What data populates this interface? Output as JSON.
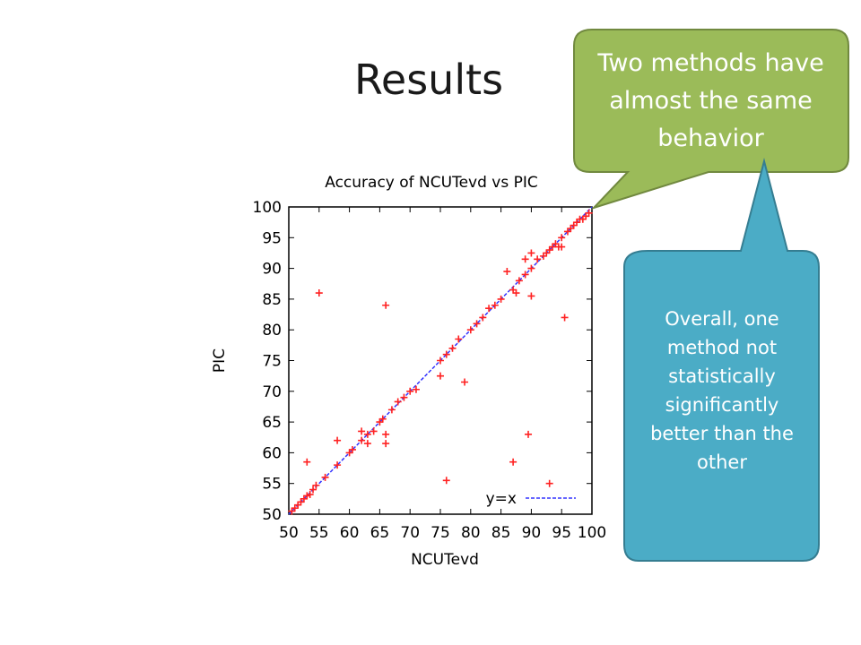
{
  "slide": {
    "title": "Results"
  },
  "callouts": {
    "green_text": "Two methods have almost the same behavior",
    "blue_text": "Overall, one method not statistically significantly better than the other",
    "green_color": "#9bbb59",
    "blue_color": "#4bacc6"
  },
  "chart_data": {
    "type": "scatter",
    "title": "Accuracy of NCUTevd vs PIC",
    "xlabel": "NCUTevd",
    "ylabel": "PIC",
    "xlim": [
      50,
      100
    ],
    "ylim": [
      50,
      100
    ],
    "xticks": [
      50,
      55,
      60,
      65,
      70,
      75,
      80,
      85,
      90,
      95,
      100
    ],
    "yticks": [
      50,
      55,
      60,
      65,
      70,
      75,
      80,
      85,
      90,
      95,
      100
    ],
    "grid": false,
    "legend": "bottom-right",
    "reference_line": {
      "label": "y=x",
      "color": "#3333ff"
    },
    "marker_color": "#ff2222",
    "points": [
      [
        50.5,
        50.5
      ],
      [
        51,
        51
      ],
      [
        51.5,
        51.5
      ],
      [
        52,
        52
      ],
      [
        52.5,
        52.5
      ],
      [
        53,
        53
      ],
      [
        53.5,
        53.2
      ],
      [
        54,
        54
      ],
      [
        54.5,
        54.7
      ],
      [
        53,
        58.5
      ],
      [
        55,
        86
      ],
      [
        56,
        56
      ],
      [
        58,
        58
      ],
      [
        58,
        62
      ],
      [
        60,
        60
      ],
      [
        60.5,
        60.5
      ],
      [
        62,
        62
      ],
      [
        62,
        63.5
      ],
      [
        63,
        61.5
      ],
      [
        63,
        63
      ],
      [
        64,
        63.5
      ],
      [
        65,
        65
      ],
      [
        65.5,
        65.5
      ],
      [
        66,
        84
      ],
      [
        66,
        63
      ],
      [
        66,
        61.5
      ],
      [
        67,
        67
      ],
      [
        68,
        68.3
      ],
      [
        69,
        69
      ],
      [
        70,
        70
      ],
      [
        71,
        70.3
      ],
      [
        75,
        72.5
      ],
      [
        75,
        75
      ],
      [
        76,
        55.5
      ],
      [
        76,
        76
      ],
      [
        77,
        77
      ],
      [
        78,
        78.5
      ],
      [
        79,
        71.5
      ],
      [
        80,
        80
      ],
      [
        81,
        81
      ],
      [
        82,
        82
      ],
      [
        83,
        83.5
      ],
      [
        84,
        84
      ],
      [
        85,
        85
      ],
      [
        86,
        89.5
      ],
      [
        87,
        58.5
      ],
      [
        87,
        86.5
      ],
      [
        87.5,
        86
      ],
      [
        88,
        88
      ],
      [
        89,
        89
      ],
      [
        89,
        91.5
      ],
      [
        89.5,
        63
      ],
      [
        90,
        85.5
      ],
      [
        90,
        92.5
      ],
      [
        90,
        90
      ],
      [
        91,
        91.5
      ],
      [
        92,
        92
      ],
      [
        92.5,
        92.5
      ],
      [
        93,
        93
      ],
      [
        93,
        55
      ],
      [
        93.5,
        93.5
      ],
      [
        94,
        94
      ],
      [
        94.5,
        93.5
      ],
      [
        95,
        93.5
      ],
      [
        95,
        95
      ],
      [
        95.5,
        82
      ],
      [
        96,
        96
      ],
      [
        96.5,
        96.5
      ],
      [
        97,
        97
      ],
      [
        97.5,
        97.5
      ],
      [
        98,
        98
      ],
      [
        98.5,
        98
      ],
      [
        99,
        98.5
      ],
      [
        99.5,
        99
      ]
    ]
  }
}
